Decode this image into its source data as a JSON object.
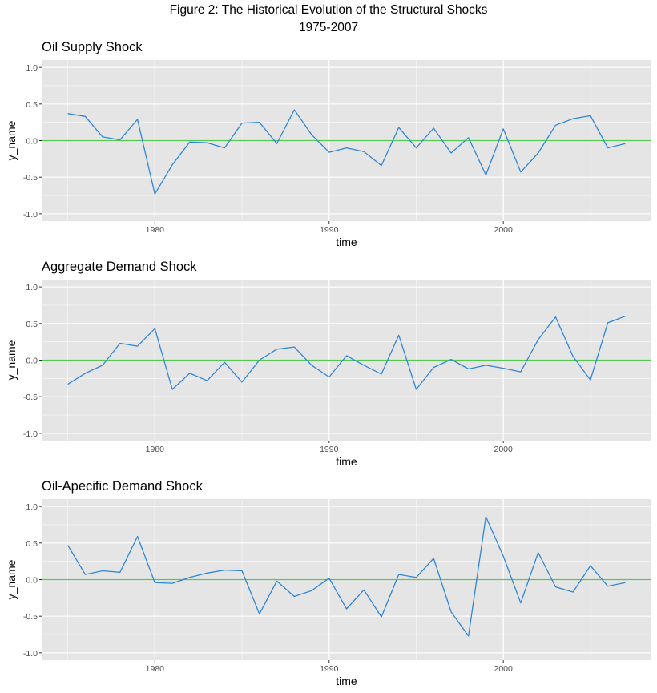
{
  "figure": {
    "title_line1": "Figure 2: The Historical Evolution of the Structural Shocks",
    "title_line2": "1975-2007"
  },
  "chart_data": [
    {
      "type": "line",
      "title": "Oil Supply Shock",
      "xlabel": "time",
      "ylabel": "y_name",
      "xlim": [
        1973.5,
        2008.5
      ],
      "ylim": [
        -1.1,
        1.1
      ],
      "x_ticks": [
        1980,
        1990,
        2000
      ],
      "y_ticks": [
        1.0,
        0.5,
        0.0,
        -0.5,
        -1.0
      ],
      "y_tick_labels": [
        "1.0",
        "0.5",
        "0.0",
        "-0.5",
        "-1.0"
      ],
      "grid": true,
      "reference_line": 0.0,
      "x": [
        1975,
        1976,
        1977,
        1978,
        1979,
        1980,
        1981,
        1982,
        1983,
        1984,
        1985,
        1986,
        1987,
        1988,
        1989,
        1990,
        1991,
        1992,
        1993,
        1994,
        1995,
        1996,
        1997,
        1998,
        1999,
        2000,
        2001,
        2002,
        2003,
        2004,
        2005,
        2006,
        2007
      ],
      "values": [
        0.37,
        0.33,
        0.05,
        0.01,
        0.29,
        -0.73,
        -0.33,
        -0.02,
        -0.03,
        -0.1,
        0.24,
        0.25,
        -0.04,
        0.42,
        0.08,
        -0.16,
        -0.1,
        -0.15,
        -0.34,
        0.18,
        -0.1,
        0.17,
        -0.17,
        0.04,
        -0.47,
        0.16,
        -0.43,
        -0.17,
        0.21,
        0.3,
        0.34,
        -0.1,
        -0.04
      ]
    },
    {
      "type": "line",
      "title": "Aggregate Demand Shock",
      "xlabel": "time",
      "ylabel": "y_name",
      "xlim": [
        1973.5,
        2008.5
      ],
      "ylim": [
        -1.1,
        1.1
      ],
      "x_ticks": [
        1980,
        1990,
        2000
      ],
      "y_ticks": [
        1.0,
        0.5,
        0.0,
        -0.5,
        -1.0
      ],
      "y_tick_labels": [
        "1.0",
        "0.5",
        "0.0",
        "-0.5",
        "-1.0"
      ],
      "grid": true,
      "reference_line": 0.0,
      "x": [
        1975,
        1976,
        1977,
        1978,
        1979,
        1980,
        1981,
        1982,
        1983,
        1984,
        1985,
        1986,
        1987,
        1988,
        1989,
        1990,
        1991,
        1992,
        1993,
        1994,
        1995,
        1996,
        1997,
        1998,
        1999,
        2000,
        2001,
        2002,
        2003,
        2004,
        2005,
        2006,
        2007
      ],
      "values": [
        -0.33,
        -0.18,
        -0.07,
        0.23,
        0.19,
        0.43,
        -0.4,
        -0.18,
        -0.28,
        -0.03,
        -0.3,
        0.0,
        0.15,
        0.18,
        -0.07,
        -0.23,
        0.06,
        -0.07,
        -0.19,
        0.34,
        -0.4,
        -0.1,
        0.01,
        -0.12,
        -0.07,
        -0.11,
        -0.16,
        0.28,
        0.59,
        0.05,
        -0.27,
        0.51,
        0.6
      ]
    },
    {
      "type": "line",
      "title": "Oil-Apecific Demand Shock",
      "xlabel": "time",
      "ylabel": "y_name",
      "xlim": [
        1973.5,
        2008.5
      ],
      "ylim": [
        -1.1,
        1.1
      ],
      "x_ticks": [
        1980,
        1990,
        2000
      ],
      "y_ticks": [
        1.0,
        0.5,
        0.0,
        -0.5,
        -1.0
      ],
      "y_tick_labels": [
        "1.0",
        "0.5",
        "0.0",
        "-0.5",
        "-1.0"
      ],
      "grid": true,
      "reference_line": 0.0,
      "x": [
        1975,
        1976,
        1977,
        1978,
        1979,
        1980,
        1981,
        1982,
        1983,
        1984,
        1985,
        1986,
        1987,
        1988,
        1989,
        1990,
        1991,
        1992,
        1993,
        1994,
        1995,
        1996,
        1997,
        1998,
        1999,
        2000,
        2001,
        2002,
        2003,
        2004,
        2005,
        2006,
        2007
      ],
      "values": [
        0.47,
        0.07,
        0.12,
        0.1,
        0.59,
        -0.04,
        -0.05,
        0.03,
        0.09,
        0.13,
        0.12,
        -0.47,
        -0.02,
        -0.23,
        -0.15,
        0.02,
        -0.4,
        -0.14,
        -0.51,
        0.07,
        0.03,
        0.29,
        -0.44,
        -0.77,
        0.86,
        0.32,
        -0.32,
        0.37,
        -0.1,
        -0.17,
        0.19,
        -0.09,
        -0.04
      ]
    }
  ],
  "colors": {
    "panel_bg": "#e5e5e5",
    "grid_major": "#ffffff",
    "series_line": "#2f86d6",
    "reference_line": "#55c84f",
    "tick_label": "#4d4d4d"
  }
}
